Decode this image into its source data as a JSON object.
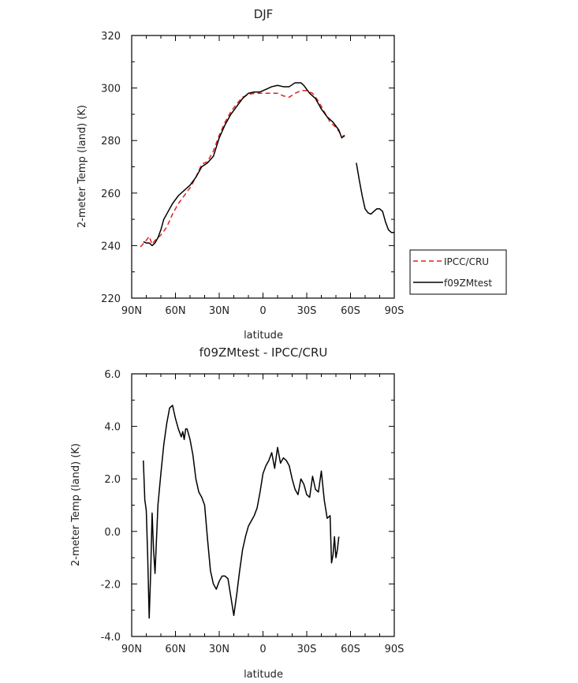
{
  "chart_data": [
    {
      "type": "line",
      "title": "DJF",
      "xlabel": "latitude",
      "ylabel": "2-meter Temp (land) (K)",
      "x_tick_labels": [
        "90N",
        "60N",
        "30N",
        "0",
        "30S",
        "60S",
        "90S"
      ],
      "x_ticks": [
        90,
        60,
        30,
        0,
        -30,
        -60,
        -90
      ],
      "xlim": [
        90,
        -90
      ],
      "ylim": [
        220,
        320
      ],
      "y_ticks": [
        220,
        240,
        260,
        280,
        300,
        320
      ],
      "y_tick_labels": [
        "220",
        "240",
        "260",
        "280",
        "300",
        "320"
      ],
      "legend": "right",
      "series": [
        {
          "name": "IPCC/CRU",
          "color": "#e3201b",
          "dash": "dashed",
          "points": [
            [
              84,
              239.5
            ],
            [
              80,
              242
            ],
            [
              78,
              243.5
            ],
            [
              76,
              240.5
            ],
            [
              74,
              242
            ],
            [
              70,
              244
            ],
            [
              66,
              247
            ],
            [
              62,
              252
            ],
            [
              58,
              256
            ],
            [
              54,
              259
            ],
            [
              50,
              262
            ],
            [
              46,
              266
            ],
            [
              42,
              271
            ],
            [
              38,
              272
            ],
            [
              34,
              276
            ],
            [
              30,
              282
            ],
            [
              26,
              287
            ],
            [
              22,
              291
            ],
            [
              18,
              294
            ],
            [
              14,
              296.5
            ],
            [
              10,
              297.5
            ],
            [
              6,
              298
            ],
            [
              2,
              298
            ],
            [
              -2,
              298
            ],
            [
              -6,
              298
            ],
            [
              -10,
              298
            ],
            [
              -14,
              297
            ],
            [
              -18,
              296.5
            ],
            [
              -22,
              298
            ],
            [
              -26,
              299
            ],
            [
              -30,
              299
            ],
            [
              -34,
              298
            ],
            [
              -38,
              295
            ],
            [
              -42,
              291
            ],
            [
              -46,
              287
            ],
            [
              -50,
              285
            ],
            [
              -54,
              282
            ],
            [
              -56,
              281.5
            ]
          ]
        },
        {
          "name": "f09ZMtest",
          "color": "#000000",
          "dash": "solid",
          "segments": [
            [
              [
                82,
                241.5
              ],
              [
                80,
                241
              ],
              [
                78,
                241
              ],
              [
                76,
                240
              ],
              [
                74,
                241
              ],
              [
                72,
                243
              ],
              [
                70,
                246
              ],
              [
                68,
                250
              ],
              [
                66,
                252
              ],
              [
                62,
                256
              ],
              [
                58,
                259
              ],
              [
                54,
                261
              ],
              [
                50,
                263
              ],
              [
                46,
                266
              ],
              [
                42,
                270
              ],
              [
                38,
                271.5
              ],
              [
                34,
                274
              ],
              [
                30,
                281
              ],
              [
                26,
                286
              ],
              [
                22,
                290
              ],
              [
                18,
                293
              ],
              [
                14,
                296
              ],
              [
                10,
                298
              ],
              [
                6,
                298.5
              ],
              [
                2,
                298.5
              ],
              [
                -2,
                299.5
              ],
              [
                -6,
                300.5
              ],
              [
                -10,
                301
              ],
              [
                -14,
                300.5
              ],
              [
                -18,
                300.5
              ],
              [
                -22,
                302
              ],
              [
                -26,
                302
              ],
              [
                -28,
                301
              ],
              [
                -32,
                298
              ],
              [
                -36,
                296
              ],
              [
                -40,
                292
              ],
              [
                -44,
                289
              ],
              [
                -48,
                287
              ],
              [
                -52,
                284
              ],
              [
                -54,
                281
              ],
              [
                -56,
                282
              ]
            ],
            [
              [
                -64,
                271.5
              ],
              [
                -66,
                265
              ],
              [
                -68,
                259
              ],
              [
                -70,
                254
              ],
              [
                -72,
                252.5
              ],
              [
                -74,
                252
              ],
              [
                -76,
                253
              ],
              [
                -78,
                254
              ],
              [
                -80,
                254
              ],
              [
                -82,
                253
              ],
              [
                -84,
                249
              ],
              [
                -86,
                246
              ],
              [
                -88,
                245
              ],
              [
                -90,
                245
              ]
            ]
          ]
        }
      ]
    },
    {
      "type": "line",
      "title": "f09ZMtest - IPCC/CRU",
      "xlabel": "latitude",
      "ylabel": "2-meter Temp (land) (K)",
      "x_tick_labels": [
        "90N",
        "60N",
        "30N",
        "0",
        "30S",
        "60S",
        "90S"
      ],
      "x_ticks": [
        90,
        60,
        30,
        0,
        -30,
        -60,
        -90
      ],
      "xlim": [
        90,
        -90
      ],
      "ylim": [
        -4.0,
        6.0
      ],
      "y_ticks": [
        -4,
        -2,
        0,
        2,
        4,
        6
      ],
      "y_tick_labels": [
        "-4.0",
        "-2.0",
        "0.0",
        "2.0",
        "4.0",
        "6.0"
      ],
      "series": [
        {
          "color": "#000000",
          "dash": "solid",
          "points": [
            [
              82,
              2.7
            ],
            [
              81,
              1.2
            ],
            [
              80,
              0.8
            ],
            [
              79,
              -1.0
            ],
            [
              78,
              -3.3
            ],
            [
              77,
              -1.6
            ],
            [
              76,
              0.7
            ],
            [
              75,
              -0.7
            ],
            [
              74,
              -1.6
            ],
            [
              73,
              -0.3
            ],
            [
              72,
              1.0
            ],
            [
              70,
              2.2
            ],
            [
              68,
              3.3
            ],
            [
              66,
              4.1
            ],
            [
              64,
              4.7
            ],
            [
              62,
              4.8
            ],
            [
              60,
              4.3
            ],
            [
              58,
              3.9
            ],
            [
              56,
              3.6
            ],
            [
              55,
              3.8
            ],
            [
              54,
              3.5
            ],
            [
              53,
              3.9
            ],
            [
              52,
              3.9
            ],
            [
              50,
              3.5
            ],
            [
              48,
              2.9
            ],
            [
              46,
              2.0
            ],
            [
              44,
              1.5
            ],
            [
              42,
              1.3
            ],
            [
              40,
              1.0
            ],
            [
              38,
              -0.3
            ],
            [
              36,
              -1.5
            ],
            [
              34,
              -2.0
            ],
            [
              32,
              -2.2
            ],
            [
              30,
              -1.9
            ],
            [
              28,
              -1.7
            ],
            [
              26,
              -1.7
            ],
            [
              24,
              -1.8
            ],
            [
              22,
              -2.5
            ],
            [
              20,
              -3.2
            ],
            [
              18,
              -2.4
            ],
            [
              16,
              -1.5
            ],
            [
              14,
              -0.7
            ],
            [
              12,
              -0.2
            ],
            [
              10,
              0.2
            ],
            [
              8,
              0.4
            ],
            [
              6,
              0.6
            ],
            [
              4,
              0.9
            ],
            [
              2,
              1.5
            ],
            [
              0,
              2.2
            ],
            [
              -2,
              2.5
            ],
            [
              -4,
              2.7
            ],
            [
              -6,
              3.0
            ],
            [
              -8,
              2.4
            ],
            [
              -10,
              3.2
            ],
            [
              -12,
              2.6
            ],
            [
              -14,
              2.8
            ],
            [
              -16,
              2.7
            ],
            [
              -18,
              2.5
            ],
            [
              -20,
              2.0
            ],
            [
              -22,
              1.6
            ],
            [
              -24,
              1.4
            ],
            [
              -26,
              2.0
            ],
            [
              -28,
              1.8
            ],
            [
              -30,
              1.4
            ],
            [
              -32,
              1.3
            ],
            [
              -34,
              2.1
            ],
            [
              -36,
              1.6
            ],
            [
              -38,
              1.5
            ],
            [
              -40,
              2.3
            ],
            [
              -42,
              1.2
            ],
            [
              -44,
              0.5
            ],
            [
              -46,
              0.6
            ],
            [
              -47,
              -1.2
            ],
            [
              -48,
              -0.9
            ],
            [
              -49,
              -0.2
            ],
            [
              -50,
              -1.0
            ],
            [
              -51,
              -0.7
            ],
            [
              -52,
              -0.2
            ]
          ]
        }
      ]
    }
  ]
}
